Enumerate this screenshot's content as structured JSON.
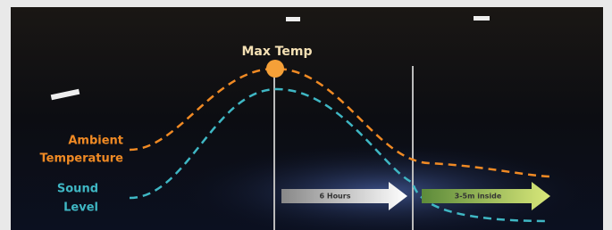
{
  "peak_label": "Max Temp",
  "curves": [
    {
      "label_lines": [
        "Ambient",
        "Temperature"
      ]
    },
    {
      "label_lines": [
        "Sound",
        "Level"
      ]
    }
  ],
  "arrows": [
    {
      "label": "6 Hours"
    },
    {
      "label": "3-5m inside"
    }
  ]
}
